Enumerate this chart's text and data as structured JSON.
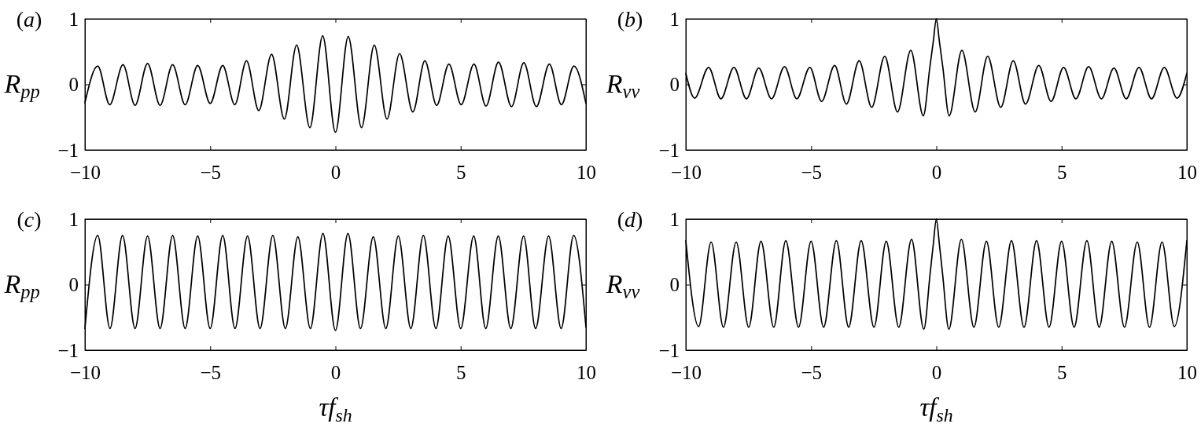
{
  "chart_data": [
    {
      "type": "line",
      "title": "(a)",
      "ylabel": "R$_{pp}$",
      "xlim": [
        -10,
        10
      ],
      "xticks": [
        -10,
        -5,
        0,
        5,
        10
      ],
      "ylim": [
        -1,
        1
      ],
      "yticks": [
        -1,
        0,
        1
      ],
      "x": [
        -10,
        -9.49,
        -9.01,
        -8.48,
        -8.0,
        -7.5,
        -7.0,
        -6.5,
        -6.0,
        -5.5,
        -5.0,
        -4.5,
        -4.02,
        -3.55,
        -3.06,
        -2.55,
        -2.04,
        -1.55,
        -1.02,
        -0.51,
        0,
        0.51,
        1.04,
        1.55,
        2.06,
        2.56,
        3.09,
        3.57,
        4.04,
        4.53,
        5.02,
        5.53,
        6.01,
        6.51,
        7.03,
        7.52,
        8.02,
        8.54,
        9.02,
        9.52,
        10
      ],
      "series": [
        {
          "color": "#000000",
          "values": [
            -0.28,
            0.28,
            -0.31,
            0.3,
            -0.32,
            0.32,
            -0.32,
            0.3,
            -0.31,
            0.29,
            -0.29,
            0.29,
            -0.31,
            0.36,
            -0.4,
            0.46,
            -0.53,
            0.6,
            -0.66,
            0.74,
            -0.73,
            0.73,
            -0.66,
            0.6,
            -0.53,
            0.47,
            -0.42,
            0.36,
            -0.32,
            0.31,
            -0.31,
            0.31,
            -0.33,
            0.34,
            -0.34,
            0.33,
            -0.34,
            0.31,
            -0.31,
            0.28,
            -0.29
          ]
        }
      ]
    },
    {
      "type": "line",
      "title": "(b)",
      "ylabel": "R$_{vv}$",
      "xlim": [
        -10,
        10
      ],
      "xticks": [
        -10,
        -5,
        0,
        5,
        10
      ],
      "ylim": [
        -1,
        1
      ],
      "yticks": [
        -1,
        0,
        1
      ],
      "x": [
        -10,
        -9.65,
        -9.09,
        -8.6,
        -8.08,
        -7.58,
        -7.09,
        -6.58,
        -6.06,
        -5.57,
        -5.05,
        -4.58,
        -4.06,
        -3.59,
        -3.08,
        -2.58,
        -2.06,
        -1.55,
        -1.02,
        -0.52,
        -0.26,
        -0.12,
        0,
        0.12,
        0.26,
        0.51,
        1.02,
        1.55,
        2.05,
        2.57,
        3.07,
        3.56,
        4.09,
        4.58,
        5.08,
        5.57,
        6.08,
        6.59,
        7.09,
        7.58,
        8.09,
        8.59,
        9.1,
        9.61,
        10
      ],
      "series": [
        {
          "color": "#000000",
          "values": [
            0.17,
            -0.21,
            0.26,
            -0.22,
            0.26,
            -0.22,
            0.25,
            -0.22,
            0.27,
            -0.22,
            0.26,
            -0.26,
            0.29,
            -0.3,
            0.36,
            -0.35,
            0.43,
            -0.42,
            0.52,
            -0.48,
            0.26,
            0.66,
            1.0,
            0.66,
            0.26,
            -0.48,
            0.52,
            -0.42,
            0.43,
            -0.35,
            0.36,
            -0.3,
            0.29,
            -0.26,
            0.26,
            -0.22,
            0.27,
            -0.22,
            0.25,
            -0.22,
            0.26,
            -0.22,
            0.26,
            -0.21,
            0.17
          ]
        }
      ]
    },
    {
      "type": "line",
      "title": "(c)",
      "ylabel": "R$_{pp}$",
      "xlabel": "τf$_{sh}$",
      "xlim": [
        -10,
        10
      ],
      "xticks": [
        -10,
        -5,
        0,
        5,
        10
      ],
      "ylim": [
        -1,
        1
      ],
      "yticks": [
        -1,
        0,
        1
      ],
      "x": [
        -10,
        -9.49,
        -9.0,
        -8.5,
        -8.0,
        -7.5,
        -7.0,
        -6.5,
        -6.0,
        -5.5,
        -5.0,
        -4.5,
        -4.01,
        -3.51,
        -3.01,
        -2.5,
        -2.0,
        -1.5,
        -1.0,
        -0.5,
        0,
        0.5,
        1.0,
        1.51,
        2.01,
        2.51,
        3.01,
        3.51,
        4.01,
        4.5,
        5.0,
        5.52,
        6.0,
        6.5,
        7.0,
        7.51,
        7.99,
        8.51,
        9.01,
        9.51,
        10
      ],
      "series": [
        {
          "color": "#000000",
          "values": [
            -0.67,
            0.75,
            -0.67,
            0.75,
            -0.67,
            0.74,
            -0.67,
            0.75,
            -0.67,
            0.74,
            -0.67,
            0.75,
            -0.67,
            0.74,
            -0.67,
            0.75,
            -0.67,
            0.73,
            -0.67,
            0.78,
            -0.7,
            0.78,
            -0.67,
            0.73,
            -0.67,
            0.74,
            -0.67,
            0.75,
            -0.67,
            0.74,
            -0.67,
            0.74,
            -0.67,
            0.74,
            -0.67,
            0.74,
            -0.67,
            0.74,
            -0.67,
            0.75,
            -0.65
          ]
        }
      ]
    },
    {
      "type": "line",
      "title": "(d)",
      "ylabel": "R$_{vv}$",
      "xlabel": "τf$_{sh}$",
      "xlim": [
        -10,
        10
      ],
      "xticks": [
        -10,
        -5,
        0,
        5,
        10
      ],
      "ylim": [
        -1,
        1
      ],
      "yticks": [
        -1,
        0,
        1
      ],
      "x": [
        -10,
        -9.49,
        -8.99,
        -8.5,
        -7.99,
        -7.49,
        -7.0,
        -6.49,
        -6.01,
        -5.5,
        -5.0,
        -4.5,
        -3.99,
        -3.5,
        -3.0,
        -2.49,
        -2.0,
        -1.5,
        -0.99,
        -0.5,
        -0.25,
        -0.12,
        0,
        0.12,
        0.25,
        0.5,
        1.0,
        1.5,
        2.0,
        2.49,
        3.0,
        3.5,
        4.0,
        4.5,
        5.0,
        5.5,
        6.01,
        6.5,
        7.0,
        7.51,
        8.02,
        8.51,
        9.01,
        9.5,
        10
      ],
      "series": [
        {
          "color": "#000000",
          "values": [
            0.67,
            -0.64,
            0.65,
            -0.65,
            0.65,
            -0.65,
            0.66,
            -0.65,
            0.67,
            -0.65,
            0.66,
            -0.65,
            0.67,
            -0.65,
            0.67,
            -0.65,
            0.66,
            -0.65,
            0.69,
            -0.68,
            0.16,
            0.62,
            1.0,
            0.62,
            0.16,
            -0.68,
            0.69,
            -0.65,
            0.66,
            -0.65,
            0.67,
            -0.65,
            0.67,
            -0.65,
            0.66,
            -0.65,
            0.67,
            -0.65,
            0.66,
            -0.65,
            0.65,
            -0.65,
            0.65,
            -0.64,
            0.67
          ]
        }
      ]
    }
  ]
}
